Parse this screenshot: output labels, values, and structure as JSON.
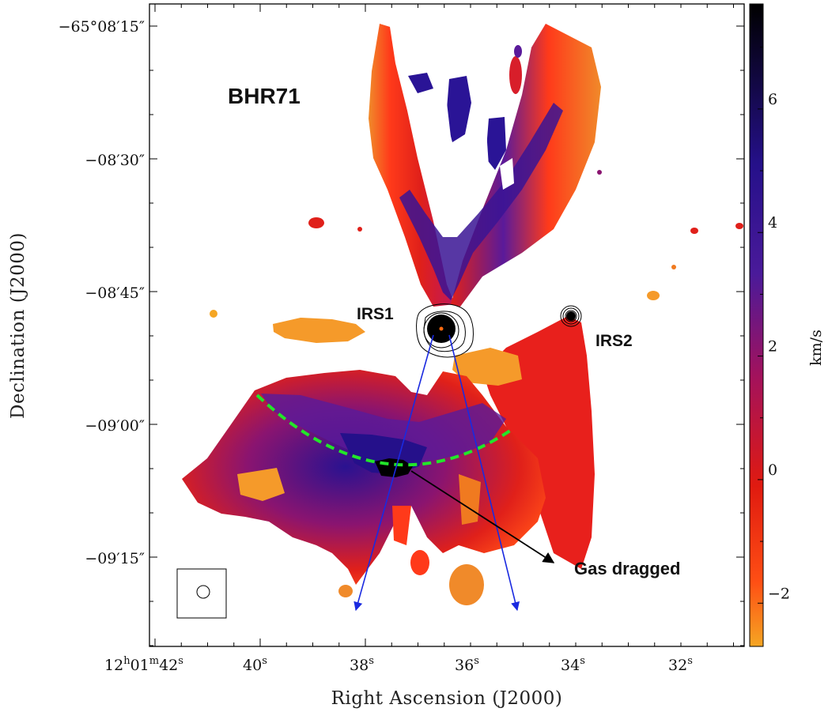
{
  "chart_data": {
    "type": "heatmap",
    "title": "BHR71",
    "xlabel": "Right Ascension (J2000)",
    "ylabel": "Declination (J2000)",
    "colorbar_label": "km/s",
    "x_ticks": [
      {
        "value": "12h01m42s",
        "h": "12",
        "m": "01",
        "s": "42"
      },
      {
        "value": "40s",
        "s": "40"
      },
      {
        "value": "38s",
        "s": "38"
      },
      {
        "value": "36s",
        "s": "36"
      },
      {
        "value": "34s",
        "s": "34"
      },
      {
        "value": "32s",
        "s": "32"
      }
    ],
    "y_ticks": [
      "−65°08′15″",
      "−08′30″",
      "−08′45″",
      "−09′00″",
      "−09′15″"
    ],
    "colorbar_ticks": [
      {
        "value": 6,
        "label": "6"
      },
      {
        "value": 4,
        "label": "4"
      },
      {
        "value": 2,
        "label": "2"
      },
      {
        "value": 0,
        "label": "0"
      },
      {
        "value": -2,
        "label": "−2"
      }
    ],
    "colorbar_range": [
      -2.7,
      7.7
    ],
    "colorscale": [
      "#f5a623",
      "#ff4f14",
      "#e01a10",
      "#a3125c",
      "#4a1a9a",
      "#25108a",
      "#000000"
    ],
    "sources": [
      {
        "name": "IRS1",
        "ra": "12h01m36.5s",
        "dec": "-65°08'49\""
      },
      {
        "name": "IRS2",
        "ra": "12h01m34.0s",
        "dec": "-65°08'48\""
      }
    ],
    "annotations": [
      {
        "text": "IRS1"
      },
      {
        "text": "IRS2"
      },
      {
        "text": "Gas dragged"
      }
    ],
    "overlays": [
      "green dashed arc",
      "blue outflow arrows",
      "black arrow",
      "contours",
      "beam ellipse"
    ]
  }
}
